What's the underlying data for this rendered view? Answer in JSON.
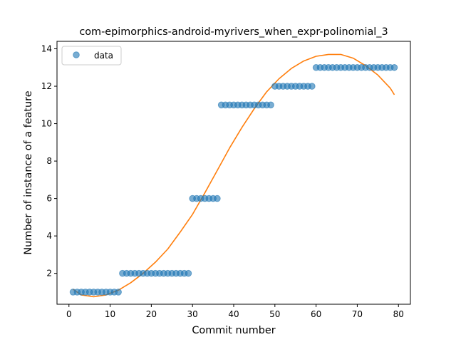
{
  "chart_data": {
    "type": "scatter",
    "title": "com-epimorphics-android-myrivers_when_expr-polinomial_3",
    "xlabel": "Commit number",
    "ylabel": "Number of instance of a feature",
    "xlim": [
      -2.9,
      82.9
    ],
    "ylim": [
      0.35,
      14.4
    ],
    "xticks": [
      0,
      10,
      20,
      30,
      40,
      50,
      60,
      70,
      80
    ],
    "yticks": [
      2,
      4,
      6,
      8,
      10,
      12,
      14
    ],
    "grid": false,
    "legend": {
      "position": "upper-left",
      "entries": [
        "data"
      ]
    },
    "series": [
      {
        "name": "data",
        "kind": "points",
        "color": "#1f77b4",
        "x": [
          1,
          2,
          3,
          4,
          5,
          6,
          7,
          8,
          9,
          10,
          11,
          12,
          13,
          14,
          15,
          16,
          17,
          18,
          19,
          20,
          21,
          22,
          23,
          24,
          25,
          26,
          27,
          28,
          29,
          30,
          31,
          32,
          33,
          34,
          35,
          36,
          37,
          38,
          39,
          40,
          41,
          42,
          43,
          44,
          45,
          46,
          47,
          48,
          49,
          50,
          51,
          52,
          53,
          54,
          55,
          56,
          57,
          58,
          59,
          60,
          61,
          62,
          63,
          64,
          65,
          66,
          67,
          68,
          69,
          70,
          71,
          72,
          73,
          74,
          75,
          76,
          77,
          78,
          79
        ],
        "y": [
          1,
          1,
          1,
          1,
          1,
          1,
          1,
          1,
          1,
          1,
          1,
          1,
          2,
          2,
          2,
          2,
          2,
          2,
          2,
          2,
          2,
          2,
          2,
          2,
          2,
          2,
          2,
          2,
          2,
          6,
          6,
          6,
          6,
          6,
          6,
          6,
          11,
          11,
          11,
          11,
          11,
          11,
          11,
          11,
          11,
          11,
          11,
          11,
          11,
          12,
          12,
          12,
          12,
          12,
          12,
          12,
          12,
          12,
          12,
          13,
          13,
          13,
          13,
          13,
          13,
          13,
          13,
          13,
          13,
          13,
          13,
          13,
          13,
          13,
          13,
          13,
          13,
          13,
          13
        ]
      },
      {
        "kind": "fit-line",
        "color": "#ff7f0e",
        "x": [
          1,
          3,
          6,
          9,
          12,
          15,
          18,
          21,
          24,
          27,
          30,
          33,
          36,
          39,
          42,
          45,
          48,
          51,
          54,
          57,
          60,
          63,
          66,
          69,
          72,
          75,
          78,
          79
        ],
        "y": [
          1.15,
          0.85,
          0.75,
          0.85,
          1.1,
          1.5,
          2.0,
          2.6,
          3.3,
          4.2,
          5.15,
          6.3,
          7.5,
          8.7,
          9.8,
          10.8,
          11.7,
          12.4,
          12.95,
          13.35,
          13.6,
          13.7,
          13.7,
          13.5,
          13.1,
          12.6,
          11.9,
          11.55
        ]
      }
    ]
  }
}
